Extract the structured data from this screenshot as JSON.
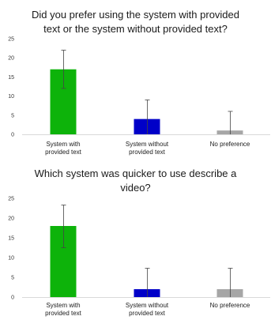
{
  "chart_data": [
    {
      "type": "bar",
      "title_lines": [
        "Did you prefer using the system with provided",
        "text or the system without provided text?"
      ],
      "categories": [
        [
          "System with",
          "provided text"
        ],
        [
          "System without",
          "provided text"
        ],
        [
          "No preference"
        ]
      ],
      "values": [
        17,
        4,
        1
      ],
      "error_upper": [
        22,
        9,
        6
      ],
      "error_lower": [
        12,
        0,
        0
      ],
      "colors": [
        "#0db30a",
        "#0000c8",
        "#a6a6a6"
      ],
      "ylim": [
        0,
        25
      ],
      "yticks": [
        "0",
        "5",
        "10",
        "15",
        "20",
        "25"
      ],
      "grid": false,
      "legend": "none"
    },
    {
      "type": "bar",
      "title_lines": [
        "Which system was quicker to use describe a",
        "video?"
      ],
      "categories": [
        [
          "System with",
          "provided text"
        ],
        [
          "System without",
          "provided text"
        ],
        [
          "No preference"
        ]
      ],
      "values": [
        18,
        2,
        2
      ],
      "error_upper": [
        23.3,
        7.3,
        7.3
      ],
      "error_lower": [
        12.5,
        0,
        0
      ],
      "colors": [
        "#0db30a",
        "#0000c8",
        "#a6a6a6"
      ],
      "ylim": [
        0,
        25
      ],
      "yticks": [
        "0",
        "5",
        "10",
        "15",
        "20",
        "25"
      ],
      "grid": false,
      "legend": "none"
    }
  ]
}
